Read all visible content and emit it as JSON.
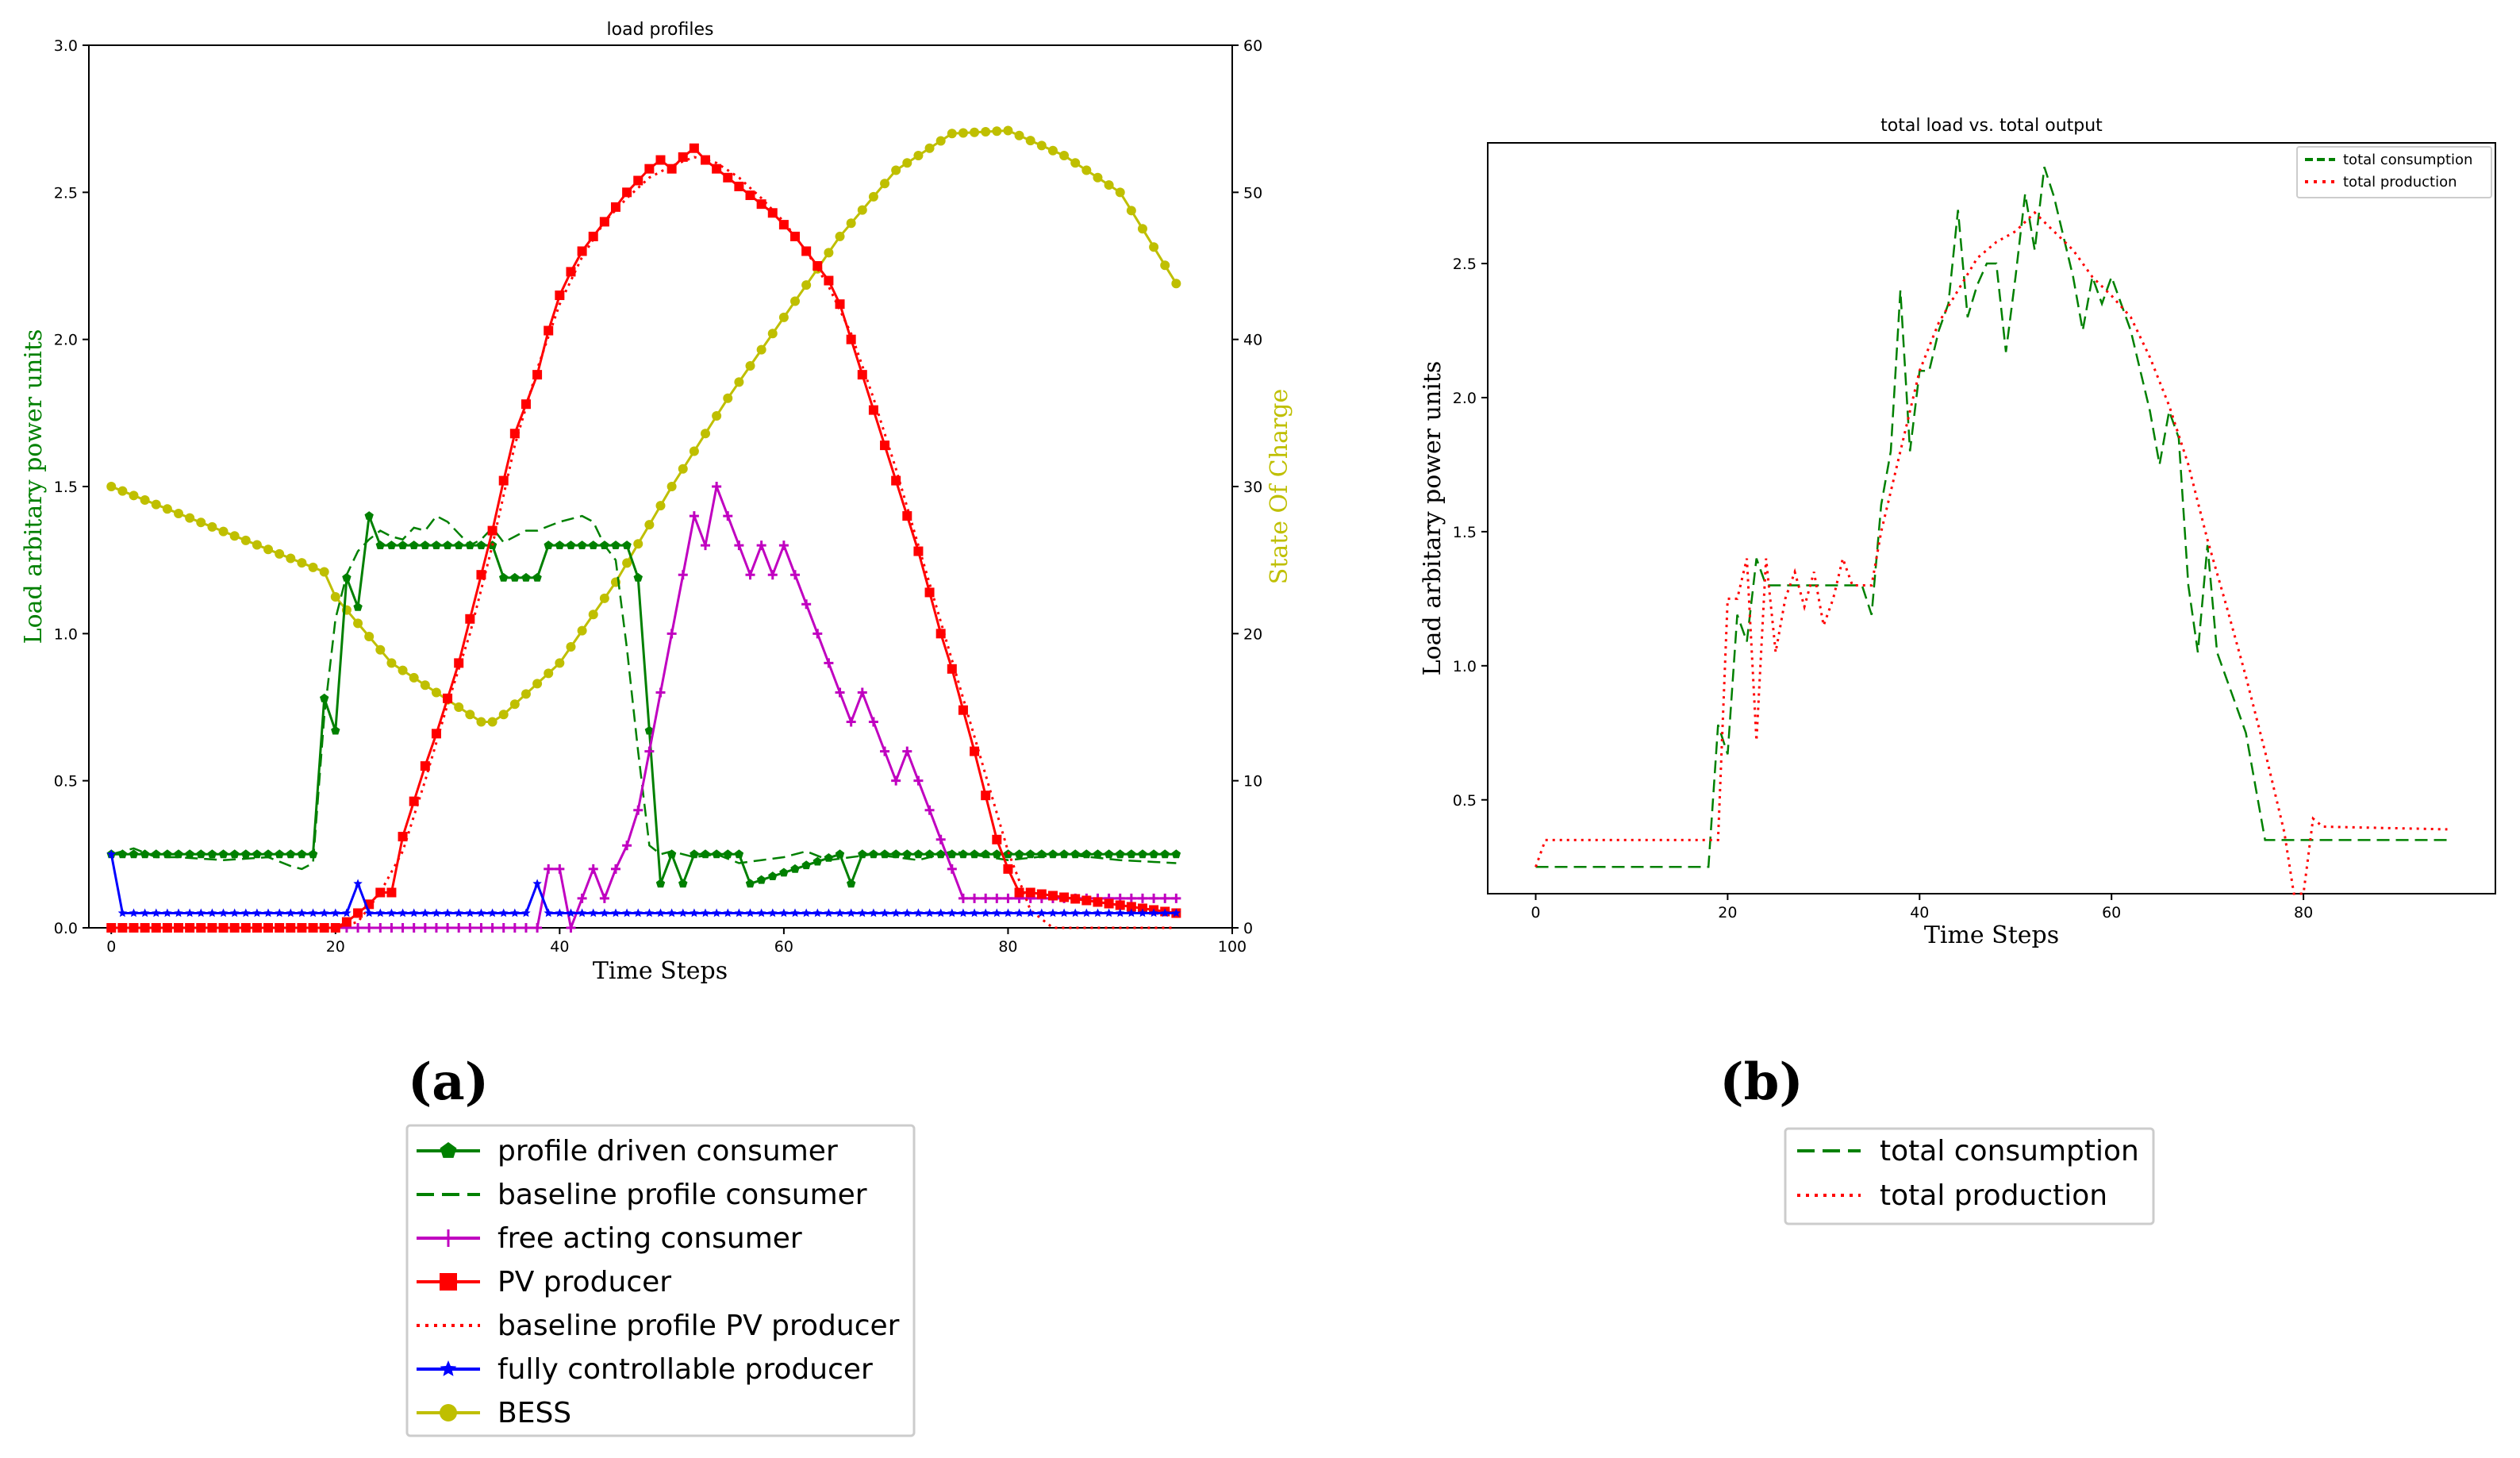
{
  "chart_data": [
    {
      "type": "line",
      "panel_label": "(a)",
      "title": "load profiles",
      "xlabel": "Time Steps",
      "ylabel": "Load arbitary power units",
      "ylabel_right": "State Of Charge",
      "xlim": [
        -2,
        100
      ],
      "ylim": [
        0,
        3.0
      ],
      "ylim_right": [
        0,
        60
      ],
      "xticks": [
        "0",
        "20",
        "40",
        "60",
        "80",
        "100"
      ],
      "yticks": [
        "0.0",
        "0.5",
        "1.0",
        "1.5",
        "2.0",
        "2.5",
        "3.0"
      ],
      "yticks_right": [
        "0",
        "10",
        "20",
        "30",
        "40",
        "50",
        "60"
      ],
      "legend": "below",
      "colors": {
        "green": "#008000",
        "magenta": "#c000c0",
        "red": "#ff0000",
        "blue": "#0000ff",
        "olive": "#bfbf00"
      },
      "series": [
        {
          "name": "profile driven consumer",
          "style": "solid-pentagon",
          "color": "#008000",
          "x": [
            0,
            18,
            19,
            20,
            21,
            22,
            23,
            24,
            34,
            35,
            38,
            39,
            46,
            47,
            48,
            49,
            50,
            51,
            52,
            56,
            57,
            65,
            66,
            67,
            95
          ],
          "y": [
            0.25,
            0.25,
            0.78,
            0.67,
            1.19,
            1.09,
            1.4,
            1.3,
            1.3,
            1.19,
            1.19,
            1.3,
            1.3,
            1.19,
            0.67,
            0.15,
            0.25,
            0.15,
            0.25,
            0.25,
            0.15,
            0.25,
            0.15,
            0.25,
            0.25
          ]
        },
        {
          "name": "baseline profile consumer",
          "style": "dashed",
          "color": "#008000",
          "x": [
            0,
            2,
            4,
            6,
            10,
            14,
            16,
            17,
            18,
            19,
            20,
            21,
            22,
            23,
            24,
            25,
            26,
            27,
            28,
            29,
            30,
            31,
            32,
            33,
            34,
            35,
            36,
            37,
            38,
            40,
            42,
            43,
            44,
            45,
            46,
            47,
            48,
            49,
            50,
            52,
            54,
            56,
            58,
            60,
            62,
            64,
            66,
            68,
            70,
            72,
            75,
            80,
            85,
            90,
            95
          ],
          "y": [
            0.25,
            0.27,
            0.24,
            0.24,
            0.23,
            0.24,
            0.21,
            0.2,
            0.22,
            0.72,
            1.05,
            1.2,
            1.28,
            1.32,
            1.35,
            1.33,
            1.32,
            1.36,
            1.35,
            1.4,
            1.38,
            1.34,
            1.3,
            1.32,
            1.36,
            1.31,
            1.33,
            1.35,
            1.35,
            1.38,
            1.4,
            1.38,
            1.3,
            1.25,
            0.95,
            0.6,
            0.28,
            0.25,
            0.26,
            0.24,
            0.25,
            0.22,
            0.23,
            0.24,
            0.26,
            0.23,
            0.24,
            0.25,
            0.24,
            0.23,
            0.26,
            0.23,
            0.25,
            0.23,
            0.22
          ]
        },
        {
          "name": "free acting consumer",
          "style": "solid-plus",
          "color": "#c000c0",
          "x": [
            0,
            38,
            39,
            40,
            41,
            42,
            43,
            44,
            45,
            46,
            47,
            48,
            49,
            50,
            51,
            52,
            53,
            54,
            55,
            56,
            57,
            58,
            59,
            60,
            61,
            62,
            63,
            64,
            65,
            66,
            67,
            68,
            69,
            70,
            71,
            72,
            73,
            74,
            75,
            76,
            95
          ],
          "y": [
            0.0,
            0.0,
            0.2,
            0.2,
            0.0,
            0.1,
            0.2,
            0.1,
            0.2,
            0.28,
            0.4,
            0.6,
            0.8,
            1.0,
            1.2,
            1.4,
            1.3,
            1.5,
            1.4,
            1.3,
            1.2,
            1.3,
            1.2,
            1.3,
            1.2,
            1.1,
            1.0,
            0.9,
            0.8,
            0.7,
            0.8,
            0.7,
            0.6,
            0.5,
            0.6,
            0.5,
            0.4,
            0.3,
            0.2,
            0.1,
            0.1
          ]
        },
        {
          "name": "PV producer",
          "style": "solid-square",
          "color": "#ff0000",
          "x": [
            0,
            20,
            21,
            22,
            23,
            24,
            25,
            26,
            27,
            28,
            29,
            30,
            31,
            32,
            33,
            34,
            35,
            36,
            37,
            38,
            39,
            40,
            41,
            42,
            43,
            44,
            45,
            46,
            47,
            48,
            49,
            50,
            51,
            52,
            53,
            54,
            55,
            56,
            57,
            58,
            59,
            60,
            61,
            62,
            63,
            64,
            65,
            66,
            67,
            68,
            69,
            70,
            71,
            72,
            73,
            74,
            75,
            76,
            77,
            78,
            79,
            80,
            81,
            82,
            95
          ],
          "y": [
            0.0,
            0.0,
            0.02,
            0.05,
            0.08,
            0.12,
            0.12,
            0.31,
            0.43,
            0.55,
            0.66,
            0.78,
            0.9,
            1.05,
            1.2,
            1.35,
            1.52,
            1.68,
            1.78,
            1.88,
            2.03,
            2.15,
            2.23,
            2.3,
            2.35,
            2.4,
            2.45,
            2.5,
            2.54,
            2.58,
            2.61,
            2.58,
            2.62,
            2.65,
            2.61,
            2.58,
            2.55,
            2.52,
            2.49,
            2.46,
            2.43,
            2.39,
            2.35,
            2.3,
            2.25,
            2.2,
            2.12,
            2.0,
            1.88,
            1.76,
            1.64,
            1.52,
            1.4,
            1.28,
            1.14,
            1.0,
            0.88,
            0.74,
            0.6,
            0.45,
            0.3,
            0.2,
            0.12,
            0.12,
            0.05
          ]
        },
        {
          "name": "baseline profile PV producer",
          "style": "dotted",
          "color": "#ff0000",
          "x": [
            0,
            20,
            22,
            24,
            26,
            28,
            30,
            32,
            34,
            36,
            38,
            40,
            42,
            44,
            46,
            48,
            50,
            52,
            54,
            56,
            58,
            60,
            62,
            64,
            66,
            68,
            70,
            72,
            74,
            76,
            78,
            80,
            82,
            84,
            95
          ],
          "y": [
            0.0,
            0.0,
            0.02,
            0.12,
            0.26,
            0.5,
            0.76,
            1.0,
            1.3,
            1.64,
            1.9,
            2.12,
            2.28,
            2.4,
            2.48,
            2.55,
            2.59,
            2.62,
            2.6,
            2.55,
            2.48,
            2.4,
            2.3,
            2.18,
            2.02,
            1.8,
            1.56,
            1.3,
            1.04,
            0.78,
            0.52,
            0.26,
            0.06,
            0.0,
            0.0
          ]
        },
        {
          "name": "fully controllable producer",
          "style": "solid-star",
          "color": "#0000ff",
          "x": [
            0,
            1,
            21,
            22,
            23,
            37,
            38,
            39,
            95
          ],
          "y": [
            0.25,
            0.05,
            0.05,
            0.15,
            0.05,
            0.05,
            0.15,
            0.05,
            0.05
          ]
        },
        {
          "name": "BESS",
          "style": "solid-circle",
          "color": "#bfbf00",
          "axis": "right",
          "x": [
            0,
            19,
            20,
            25,
            30,
            33,
            34,
            35,
            40,
            45,
            50,
            55,
            60,
            65,
            70,
            75,
            80,
            85,
            90,
            95
          ],
          "y": [
            30,
            24.2,
            22.5,
            18.0,
            15.5,
            14.0,
            14.0,
            14.5,
            18.0,
            23.5,
            30.0,
            36.0,
            41.5,
            47.0,
            51.5,
            54.0,
            54.2,
            52.5,
            50.0,
            43.8
          ]
        }
      ]
    },
    {
      "type": "line",
      "panel_label": "(b)",
      "title": "total load vs. total output",
      "xlabel": "Time Steps",
      "ylabel": "Load arbitary power units",
      "xlim": [
        -5,
        100
      ],
      "ylim": [
        0.15,
        2.95
      ],
      "xticks": [
        "0",
        "20",
        "40",
        "60",
        "80"
      ],
      "yticks": [
        "0.5",
        "1.0",
        "1.5",
        "2.0",
        "2.5"
      ],
      "legend": "top-right and below",
      "series": [
        {
          "name": "total consumption",
          "style": "dashed",
          "color": "#008000",
          "x": [
            0,
            18,
            19,
            20,
            21,
            22,
            23,
            24,
            25,
            26,
            27,
            28,
            29,
            30,
            31,
            32,
            33,
            34,
            35,
            36,
            37,
            38,
            39,
            40,
            41,
            42,
            43,
            44,
            45,
            46,
            47,
            48,
            49,
            50,
            51,
            52,
            53,
            54,
            55,
            56,
            57,
            58,
            59,
            60,
            61,
            62,
            63,
            64,
            65,
            66,
            67,
            68,
            69,
            70,
            71,
            72,
            73,
            74,
            75,
            76,
            78,
            80,
            82,
            84,
            86,
            88,
            90,
            92,
            95
          ],
          "y": [
            0.25,
            0.25,
            0.78,
            0.67,
            1.19,
            1.09,
            1.4,
            1.3,
            1.3,
            1.3,
            1.3,
            1.3,
            1.3,
            1.3,
            1.3,
            1.3,
            1.3,
            1.3,
            1.19,
            1.6,
            1.8,
            2.4,
            1.8,
            2.1,
            2.1,
            2.25,
            2.35,
            2.7,
            2.3,
            2.42,
            2.5,
            2.5,
            2.17,
            2.45,
            2.76,
            2.55,
            2.86,
            2.75,
            2.6,
            2.45,
            2.25,
            2.45,
            2.35,
            2.45,
            2.35,
            2.25,
            2.1,
            1.95,
            1.75,
            1.95,
            1.85,
            1.3,
            1.05,
            1.45,
            1.05,
            0.95,
            0.85,
            0.75,
            0.55,
            0.35,
            0.35,
            0.35,
            0.35,
            0.35,
            0.35,
            0.35,
            0.35,
            0.35,
            0.35
          ]
        },
        {
          "name": "total production",
          "style": "dotted",
          "color": "#ff0000",
          "x": [
            0,
            1,
            18,
            19,
            20,
            21,
            22,
            23,
            24,
            25,
            26,
            27,
            28,
            29,
            30,
            31,
            32,
            33,
            34,
            35,
            36,
            38,
            40,
            42,
            44,
            46,
            48,
            50,
            52,
            54,
            56,
            58,
            60,
            62,
            64,
            66,
            68,
            70,
            72,
            74,
            76,
            78,
            79,
            80,
            81,
            82,
            95
          ],
          "y": [
            0.25,
            0.35,
            0.35,
            0.35,
            1.25,
            1.25,
            1.4,
            0.72,
            1.4,
            1.05,
            1.25,
            1.35,
            1.22,
            1.35,
            1.15,
            1.25,
            1.4,
            1.3,
            1.3,
            1.3,
            1.5,
            1.8,
            2.1,
            2.28,
            2.4,
            2.52,
            2.58,
            2.62,
            2.69,
            2.62,
            2.55,
            2.45,
            2.38,
            2.3,
            2.15,
            1.97,
            1.75,
            1.47,
            1.22,
            0.96,
            0.68,
            0.38,
            0.15,
            0.15,
            0.43,
            0.4,
            0.39
          ]
        }
      ]
    }
  ]
}
